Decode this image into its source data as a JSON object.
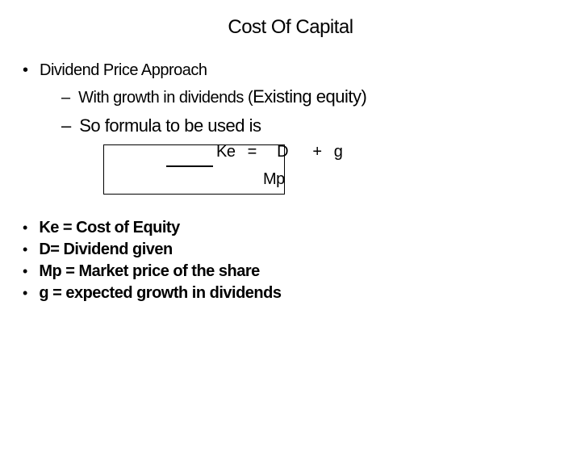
{
  "title": "Cost Of Capital",
  "lvl1": "Dividend Price Approach",
  "sub1_prefix": "With  growth in dividends (",
  "sub1_larger": "Existing equity)",
  "sub2": "So formula to be used is",
  "formula_line1": "Ke   =     D      +   g",
  "formula_line2": "Mp",
  "defs": {
    "d1": "Ke = Cost of Equity",
    "d2": "D= Dividend given",
    "d3": "Mp = Market price of the share",
    "d4": "g = expected growth in dividends"
  },
  "colors": {
    "bg": "#ffffff",
    "text": "#000000",
    "box_border": "#000000"
  },
  "glyphs": {
    "bullet": "•",
    "dash": "–"
  }
}
